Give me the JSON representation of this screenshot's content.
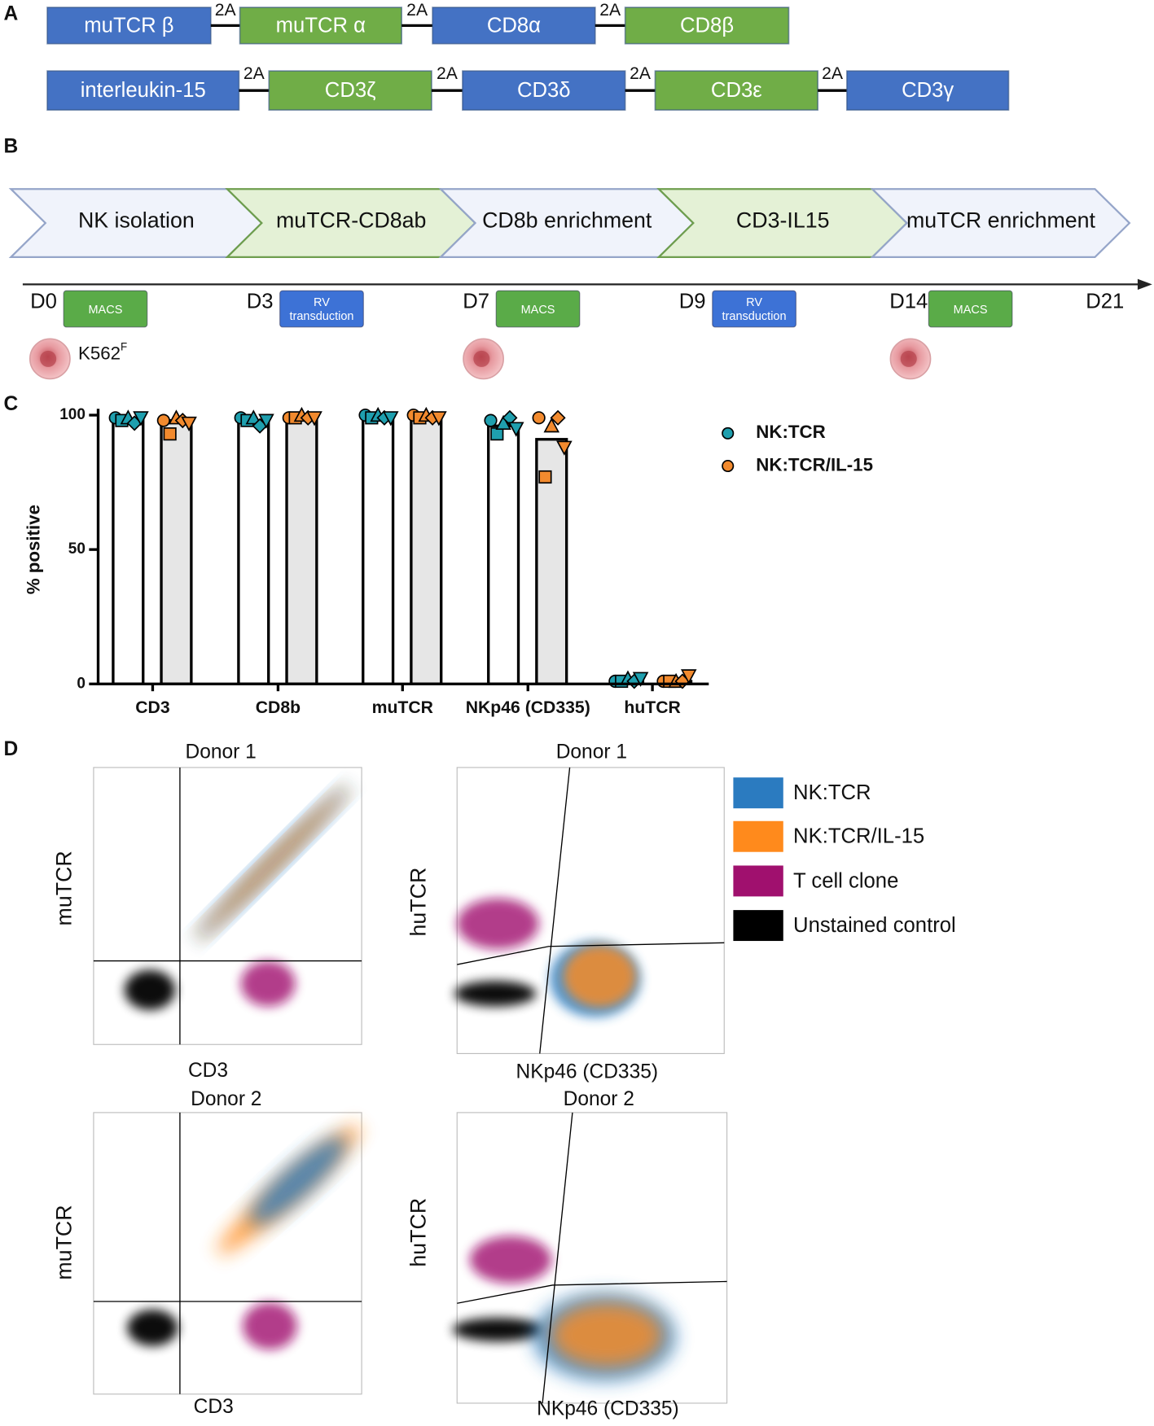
{
  "panel_labels": [
    "A",
    "B",
    "C",
    "D"
  ],
  "construct": {
    "linker": "2A",
    "rows": [
      [
        {
          "label": "muTCR β",
          "color": "#4472c4"
        },
        {
          "label": "muTCR α",
          "color": "#70ad47"
        },
        {
          "label": "CD8α",
          "color": "#4472c4"
        },
        {
          "label": "CD8β",
          "color": "#70ad47"
        }
      ],
      [
        {
          "label": "interleukin-15",
          "color": "#4472c4"
        },
        {
          "label": "CD3ζ",
          "color": "#70ad47"
        },
        {
          "label": "CD3δ",
          "color": "#4472c4"
        },
        {
          "label": "CD3ε",
          "color": "#70ad47"
        },
        {
          "label": "CD3γ",
          "color": "#4472c4"
        }
      ]
    ]
  },
  "workflow": {
    "steps": [
      {
        "label": "NK isolation",
        "color": "#f0f3fb"
      },
      {
        "label": "muTCR-CD8ab",
        "color": "#e4f1d6"
      },
      {
        "label": "CD8b enrichment",
        "color": "#f0f3fb"
      },
      {
        "label": "CD3-IL15",
        "color": "#e4f1d6"
      },
      {
        "label": "muTCR enrichment",
        "color": "#f0f3fb"
      }
    ],
    "timepoints": [
      {
        "day": "D0",
        "method": "MACS",
        "color": "#5aab48"
      },
      {
        "day": "D3",
        "method": "RV transduction",
        "color": "#3d72d6"
      },
      {
        "day": "D7",
        "method": "MACS",
        "color": "#5aab48"
      },
      {
        "day": "D9",
        "method": "RV transduction",
        "color": "#3d72d6"
      },
      {
        "day": "D14",
        "method": "MACS",
        "color": "#5aab48"
      },
      {
        "day": "D21"
      }
    ],
    "cell_label": {
      "text": "K562",
      "superscript": "F"
    }
  },
  "chart_data": {
    "type": "bar",
    "ylabel": "% positive",
    "categories": [
      "CD3",
      "CD8b",
      "muTCR",
      "NKp46 (CD335)",
      "huTCR"
    ],
    "ylim": [
      0,
      100
    ],
    "yticks": [
      0,
      50,
      100
    ],
    "markers": [
      "circle",
      "square",
      "triangle",
      "diamond",
      "triangle-down"
    ],
    "series": [
      {
        "name": "NK:TCR",
        "color": "#1f9fae",
        "bar_color": "#ffffff",
        "values": [
          98,
          98,
          99,
          96,
          1
        ],
        "points": [
          [
            99,
            98,
            99,
            97,
            99
          ],
          [
            99,
            98,
            99,
            96,
            98
          ],
          [
            100,
            99,
            100,
            99,
            99
          ],
          [
            98,
            93,
            97,
            99,
            95
          ],
          [
            1,
            1,
            2,
            1,
            2
          ]
        ]
      },
      {
        "name": "NK:TCR/IL-15",
        "color": "#f28a2e",
        "bar_color": "#e6e6e6",
        "values": [
          98,
          99,
          99,
          91,
          1
        ],
        "points": [
          [
            98,
            93,
            99,
            98,
            97
          ],
          [
            99,
            99,
            100,
            99,
            99
          ],
          [
            100,
            99,
            100,
            99,
            99
          ],
          [
            99,
            77,
            96,
            99,
            88
          ],
          [
            1,
            1,
            1,
            1,
            3
          ]
        ]
      }
    ]
  },
  "flow": {
    "plots": [
      {
        "title": "Donor 1",
        "xlabel": "CD3",
        "ylabel": "muTCR"
      },
      {
        "title": "Donor 1",
        "xlabel": "NKp46 (CD335)",
        "ylabel": "huTCR"
      },
      {
        "title": "Donor 2",
        "xlabel": "CD3",
        "ylabel": "muTCR"
      },
      {
        "title": "Donor 2",
        "xlabel": "NKp46 (CD335)",
        "ylabel": "huTCR"
      }
    ],
    "legend": [
      {
        "name": "NK:TCR",
        "color": "#2b7bc0"
      },
      {
        "name": "NK:TCR/IL-15",
        "color": "#ff8a1c"
      },
      {
        "name": "T cell clone",
        "color": "#a0106e"
      },
      {
        "name": "Unstained control",
        "color": "#000000"
      }
    ]
  }
}
